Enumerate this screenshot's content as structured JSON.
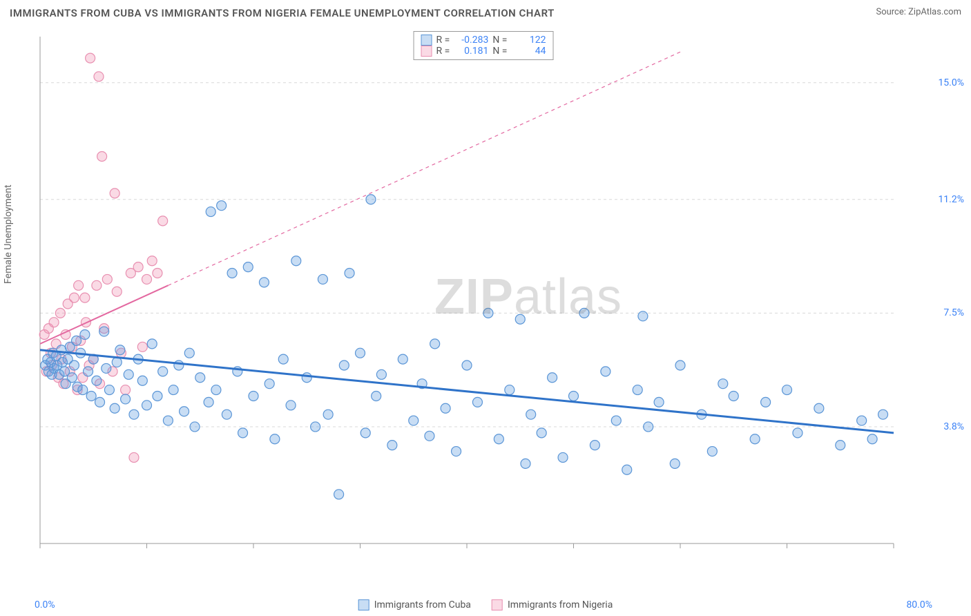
{
  "title": "IMMIGRANTS FROM CUBA VS IMMIGRANTS FROM NIGERIA FEMALE UNEMPLOYMENT CORRELATION CHART",
  "source_label": "Source: ",
  "source_name": "ZipAtlas.com",
  "ylabel": "Female Unemployment",
  "watermark_bold": "ZIP",
  "watermark_rest": "atlas",
  "chart": {
    "type": "scatter",
    "background_color": "#ffffff",
    "grid_color": "#d8d8d8",
    "axis_color": "#9a9a9a",
    "xlim": [
      0,
      80
    ],
    "ylim": [
      0,
      16.5
    ],
    "xaxis": {
      "min_label": "0.0%",
      "max_label": "80.0%",
      "tick_positions": [
        0,
        10,
        20,
        30,
        40,
        50,
        60,
        70,
        80
      ]
    },
    "yaxis": {
      "ticks": [
        {
          "v": 3.8,
          "label": "3.8%"
        },
        {
          "v": 7.5,
          "label": "7.5%"
        },
        {
          "v": 11.2,
          "label": "11.2%"
        },
        {
          "v": 15.0,
          "label": "15.0%"
        }
      ]
    },
    "series": [
      {
        "name": "Immigrants from Cuba",
        "fill": "rgba(96,157,224,0.35)",
        "stroke": "#5a95d6",
        "marker_radius": 7,
        "trend": {
          "x1": 0,
          "y1": 6.3,
          "x2": 80,
          "y2": 3.6,
          "solid_until_x": 80,
          "stroke": "#2f73c9",
          "width": 3
        },
        "R": "-0.283",
        "N": "122",
        "points": [
          [
            0.5,
            5.8
          ],
          [
            0.7,
            6.0
          ],
          [
            0.8,
            5.6
          ],
          [
            1.0,
            5.9
          ],
          [
            1.1,
            5.5
          ],
          [
            1.2,
            6.2
          ],
          [
            1.3,
            5.7
          ],
          [
            1.5,
            6.1
          ],
          [
            1.6,
            5.8
          ],
          [
            1.8,
            5.5
          ],
          [
            2.0,
            6.3
          ],
          [
            2.1,
            5.9
          ],
          [
            2.3,
            5.6
          ],
          [
            2.4,
            5.2
          ],
          [
            2.6,
            6.0
          ],
          [
            2.8,
            6.4
          ],
          [
            3.0,
            5.4
          ],
          [
            3.2,
            5.8
          ],
          [
            3.4,
            6.6
          ],
          [
            3.5,
            5.1
          ],
          [
            3.8,
            6.2
          ],
          [
            4.0,
            5.0
          ],
          [
            4.2,
            6.8
          ],
          [
            4.5,
            5.6
          ],
          [
            4.8,
            4.8
          ],
          [
            5.0,
            6.0
          ],
          [
            5.3,
            5.3
          ],
          [
            5.6,
            4.6
          ],
          [
            6.0,
            6.9
          ],
          [
            6.2,
            5.7
          ],
          [
            6.5,
            5.0
          ],
          [
            7.0,
            4.4
          ],
          [
            7.2,
            5.9
          ],
          [
            7.5,
            6.3
          ],
          [
            8.0,
            4.7
          ],
          [
            8.3,
            5.5
          ],
          [
            8.8,
            4.2
          ],
          [
            9.2,
            6.0
          ],
          [
            9.6,
            5.3
          ],
          [
            10.0,
            4.5
          ],
          [
            10.5,
            6.5
          ],
          [
            11.0,
            4.8
          ],
          [
            11.5,
            5.6
          ],
          [
            12.0,
            4.0
          ],
          [
            12.5,
            5.0
          ],
          [
            13.0,
            5.8
          ],
          [
            13.5,
            4.3
          ],
          [
            14.0,
            6.2
          ],
          [
            14.5,
            3.8
          ],
          [
            15.0,
            5.4
          ],
          [
            15.8,
            4.6
          ],
          [
            16.0,
            10.8
          ],
          [
            16.5,
            5.0
          ],
          [
            17.0,
            11.0
          ],
          [
            17.5,
            4.2
          ],
          [
            18.0,
            8.8
          ],
          [
            18.5,
            5.6
          ],
          [
            19.0,
            3.6
          ],
          [
            19.5,
            9.0
          ],
          [
            20.0,
            4.8
          ],
          [
            21.0,
            8.5
          ],
          [
            21.5,
            5.2
          ],
          [
            22.0,
            3.4
          ],
          [
            22.8,
            6.0
          ],
          [
            23.5,
            4.5
          ],
          [
            24.0,
            9.2
          ],
          [
            25.0,
            5.4
          ],
          [
            25.8,
            3.8
          ],
          [
            26.5,
            8.6
          ],
          [
            27.0,
            4.2
          ],
          [
            28.0,
            1.6
          ],
          [
            28.5,
            5.8
          ],
          [
            29.0,
            8.8
          ],
          [
            30.0,
            6.2
          ],
          [
            30.5,
            3.6
          ],
          [
            31.0,
            11.2
          ],
          [
            31.5,
            4.8
          ],
          [
            32.0,
            5.5
          ],
          [
            33.0,
            3.2
          ],
          [
            34.0,
            6.0
          ],
          [
            35.0,
            4.0
          ],
          [
            35.8,
            5.2
          ],
          [
            36.5,
            3.5
          ],
          [
            37.0,
            6.5
          ],
          [
            38.0,
            4.4
          ],
          [
            39.0,
            3.0
          ],
          [
            40.0,
            5.8
          ],
          [
            41.0,
            4.6
          ],
          [
            42.0,
            7.5
          ],
          [
            43.0,
            3.4
          ],
          [
            44.0,
            5.0
          ],
          [
            45.0,
            7.3
          ],
          [
            45.5,
            2.6
          ],
          [
            46.0,
            4.2
          ],
          [
            47.0,
            3.6
          ],
          [
            48.0,
            5.4
          ],
          [
            49.0,
            2.8
          ],
          [
            50.0,
            4.8
          ],
          [
            51.0,
            7.5
          ],
          [
            52.0,
            3.2
          ],
          [
            53.0,
            5.6
          ],
          [
            54.0,
            4.0
          ],
          [
            55.0,
            2.4
          ],
          [
            56.0,
            5.0
          ],
          [
            56.5,
            7.4
          ],
          [
            57.0,
            3.8
          ],
          [
            58.0,
            4.6
          ],
          [
            59.5,
            2.6
          ],
          [
            60.0,
            5.8
          ],
          [
            62.0,
            4.2
          ],
          [
            63.0,
            3.0
          ],
          [
            64.0,
            5.2
          ],
          [
            65.0,
            4.8
          ],
          [
            67.0,
            3.4
          ],
          [
            68.0,
            4.6
          ],
          [
            70.0,
            5.0
          ],
          [
            71.0,
            3.6
          ],
          [
            73.0,
            4.4
          ],
          [
            75.0,
            3.2
          ],
          [
            77.0,
            4.0
          ],
          [
            78.0,
            3.4
          ],
          [
            79.0,
            4.2
          ]
        ]
      },
      {
        "name": "Immigrants from Nigeria",
        "fill": "rgba(240,150,180,0.35)",
        "stroke": "#e88fb0",
        "marker_radius": 7,
        "trend": {
          "x1": 0,
          "y1": 6.5,
          "x2": 60,
          "y2": 16.0,
          "solid_until_x": 12,
          "stroke": "#e368a0",
          "width": 2
        },
        "R": "0.181",
        "N": "44",
        "points": [
          [
            0.4,
            6.8
          ],
          [
            0.6,
            5.6
          ],
          [
            0.8,
            7.0
          ],
          [
            1.0,
            6.2
          ],
          [
            1.1,
            5.8
          ],
          [
            1.3,
            7.2
          ],
          [
            1.5,
            6.5
          ],
          [
            1.7,
            5.4
          ],
          [
            1.9,
            7.5
          ],
          [
            2.0,
            6.0
          ],
          [
            2.2,
            5.2
          ],
          [
            2.4,
            6.8
          ],
          [
            2.6,
            7.8
          ],
          [
            2.8,
            5.6
          ],
          [
            3.0,
            6.4
          ],
          [
            3.2,
            8.0
          ],
          [
            3.5,
            5.0
          ],
          [
            3.8,
            6.6
          ],
          [
            4.0,
            5.4
          ],
          [
            4.3,
            7.2
          ],
          [
            4.6,
            5.8
          ],
          [
            5.0,
            6.0
          ],
          [
            5.3,
            8.4
          ],
          [
            5.6,
            5.2
          ],
          [
            6.0,
            7.0
          ],
          [
            6.3,
            8.6
          ],
          [
            6.8,
            5.6
          ],
          [
            7.2,
            8.2
          ],
          [
            7.6,
            6.2
          ],
          [
            8.0,
            5.0
          ],
          [
            8.5,
            8.8
          ],
          [
            8.8,
            2.8
          ],
          [
            9.2,
            9.0
          ],
          [
            9.6,
            6.4
          ],
          [
            10.0,
            8.6
          ],
          [
            10.5,
            9.2
          ],
          [
            11.0,
            8.8
          ],
          [
            11.5,
            10.5
          ],
          [
            4.7,
            15.8
          ],
          [
            5.5,
            15.2
          ],
          [
            5.8,
            12.6
          ],
          [
            7.0,
            11.4
          ],
          [
            3.6,
            8.4
          ],
          [
            4.2,
            8.0
          ]
        ]
      }
    ],
    "stats_labels": {
      "R": "R =",
      "N": "N ="
    },
    "bottom_legend": [
      {
        "name": "Immigrants from Cuba",
        "fill": "rgba(96,157,224,0.35)",
        "stroke": "#5a95d6"
      },
      {
        "name": "Immigrants from Nigeria",
        "fill": "rgba(240,150,180,0.35)",
        "stroke": "#e88fb0"
      }
    ]
  }
}
